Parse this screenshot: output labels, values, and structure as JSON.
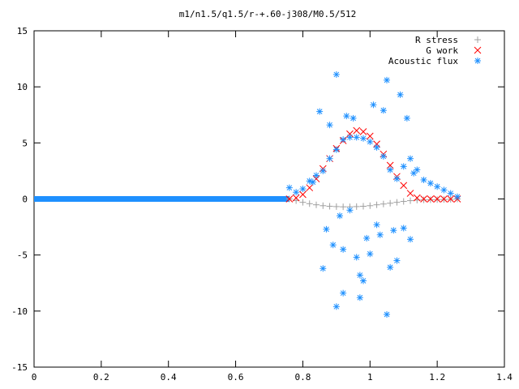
{
  "chart_data": {
    "type": "scatter",
    "title": "m1/n1.5/q1.5/r-+.60-j308/M0.5/512",
    "xlabel": "",
    "ylabel": "",
    "xlim": [
      0,
      1.4
    ],
    "ylim": [
      -15,
      15
    ],
    "xticks": [
      0,
      0.2,
      0.4,
      0.6,
      0.8,
      1,
      1.2,
      1.4
    ],
    "xtick_labels": [
      "0",
      "0.2",
      "0.4",
      "0.6",
      "0.8",
      "1",
      "1.2",
      "1.4"
    ],
    "yticks": [
      -15,
      -10,
      -5,
      0,
      5,
      10,
      15
    ],
    "ytick_labels": [
      "-15",
      "-10",
      "-5",
      "0",
      "5",
      "10",
      "15"
    ],
    "grid": false,
    "legend_position": "top-right",
    "series": [
      {
        "name": "R stress",
        "marker": "plus",
        "color": "#a0a0a0",
        "x": [
          0.76,
          0.78,
          0.8,
          0.82,
          0.84,
          0.86,
          0.88,
          0.9,
          0.92,
          0.94,
          0.96,
          0.98,
          1.0,
          1.02,
          1.04,
          1.06,
          1.08,
          1.1,
          1.12,
          1.14,
          1.16,
          1.18,
          1.2,
          1.22,
          1.24,
          1.26
        ],
        "y": [
          0,
          -0.15,
          -0.3,
          -0.42,
          -0.52,
          -0.6,
          -0.65,
          -0.68,
          -0.7,
          -0.7,
          -0.68,
          -0.65,
          -0.6,
          -0.52,
          -0.45,
          -0.38,
          -0.3,
          -0.22,
          -0.15,
          -0.1,
          -0.08,
          -0.07,
          -0.06,
          -0.05,
          -0.03,
          0
        ]
      },
      {
        "name": "G work",
        "marker": "cross",
        "color": "#ff0000",
        "x": [
          0.76,
          0.78,
          0.8,
          0.82,
          0.84,
          0.86,
          0.88,
          0.9,
          0.92,
          0.94,
          0.96,
          0.98,
          1.0,
          1.02,
          1.04,
          1.06,
          1.08,
          1.1,
          1.12,
          1.14,
          1.16,
          1.18,
          1.2,
          1.22,
          1.24,
          1.26
        ],
        "y": [
          0,
          0.1,
          0.4,
          1.0,
          1.8,
          2.7,
          3.6,
          4.5,
          5.2,
          5.8,
          6.1,
          6.0,
          5.6,
          4.9,
          4.0,
          3.0,
          2.0,
          1.2,
          0.5,
          0.1,
          0.0,
          0.0,
          0.0,
          0.0,
          0.0,
          0.0
        ]
      },
      {
        "name": "Acoustic flux",
        "marker": "star",
        "color": "#1e90ff",
        "x": [
          0.76,
          0.78,
          0.8,
          0.82,
          0.84,
          0.86,
          0.88,
          0.9,
          0.92,
          0.94,
          0.96,
          0.98,
          1.0,
          1.02,
          1.04,
          1.06,
          1.08,
          1.1,
          1.12,
          1.14,
          1.16,
          1.18,
          1.2,
          1.22,
          1.24,
          1.26,
          0.83,
          0.85,
          0.86,
          0.88,
          0.9,
          0.92,
          0.93,
          0.95,
          0.97,
          0.99,
          1.01,
          1.02,
          1.04,
          1.05,
          1.07,
          1.09,
          1.11,
          1.13,
          0.87,
          0.89,
          0.91,
          0.94,
          0.96,
          0.98,
          1.0,
          1.03,
          1.06,
          1.08,
          1.1,
          1.12,
          0.9,
          0.92,
          0.97,
          1.05
        ],
        "y": [
          1.0,
          0.6,
          0.9,
          1.6,
          2.1,
          2.5,
          3.6,
          4.4,
          5.3,
          5.5,
          5.5,
          5.4,
          5.1,
          4.6,
          3.8,
          2.6,
          1.8,
          2.9,
          3.6,
          2.6,
          1.7,
          1.4,
          1.1,
          0.8,
          0.5,
          0.2,
          1.5,
          7.8,
          -6.2,
          6.6,
          11.1,
          -4.5,
          7.4,
          7.2,
          -6.8,
          -3.5,
          8.4,
          -2.3,
          7.9,
          10.6,
          -2.8,
          9.3,
          7.2,
          2.3,
          -2.7,
          -4.1,
          -1.5,
          -1.0,
          -5.2,
          -7.3,
          -4.9,
          -3.2,
          -6.1,
          -5.5,
          -2.6,
          -3.6,
          -9.6,
          -8.4,
          -8.8,
          -10.3
        ]
      }
    ]
  }
}
